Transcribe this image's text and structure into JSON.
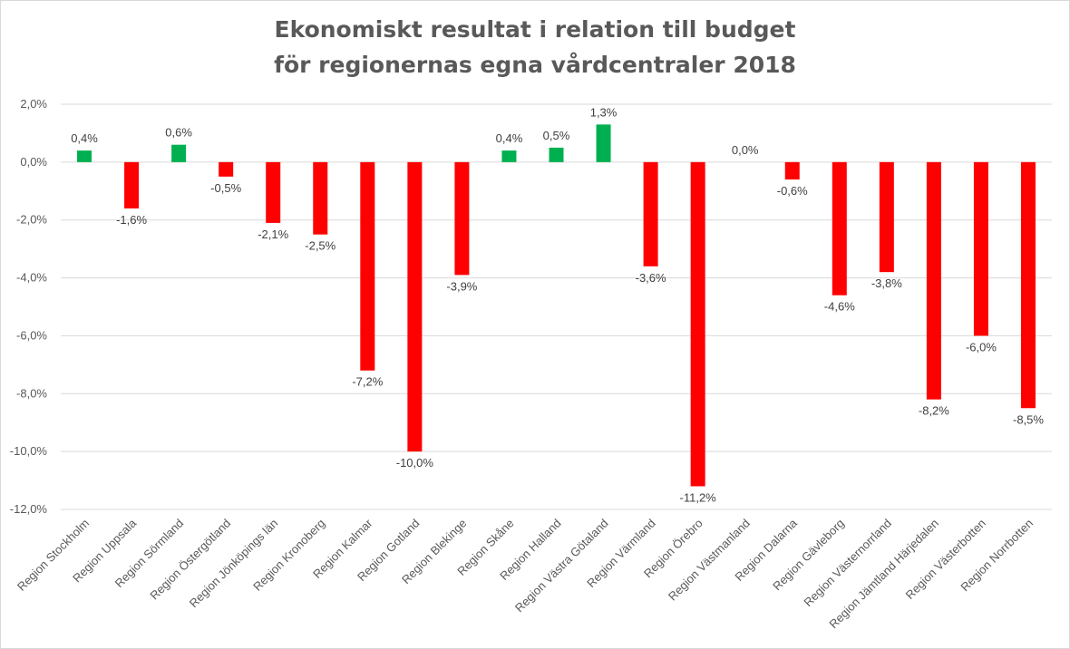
{
  "chart_data": {
    "type": "bar",
    "title": [
      "Ekonomiskt resultat i relation till budget",
      "för regionernas egna vårdcentraler 2018"
    ],
    "xlabel": "",
    "ylabel": "",
    "ylim": [
      -12,
      2
    ],
    "yticks": [
      2,
      0,
      -2,
      -4,
      -6,
      -8,
      -10,
      -12
    ],
    "ytick_labels": [
      "2,0%",
      "0,0%",
      "-2,0%",
      "-4,0%",
      "-6,0%",
      "-8,0%",
      "-10,0%",
      "-12,0%"
    ],
    "grid": true,
    "legend": "none",
    "colors": {
      "positive": "#00b050",
      "negative": "#ff0000",
      "grid": "#d9d9d9"
    },
    "categories": [
      "Region Stockholm",
      "Region Uppsala",
      "Region Sörmland",
      "Region Östergötland",
      "Region Jönköpings län",
      "Region Kronoberg",
      "Region Kalmar",
      "Region Gotland",
      "Region Blekinge",
      "Region Skåne",
      "Region Halland",
      "Region Västra Götaland",
      "Region Värmland",
      "Region Örebro",
      "Region Västmanland",
      "Region Dalarna",
      "Region Gävleborg",
      "Region Västernorrland",
      "Region Jämtland Härjedalen",
      "Region Västerbotten",
      "Region Norrbotten"
    ],
    "values": [
      0.4,
      -1.6,
      0.6,
      -0.5,
      -2.1,
      -2.5,
      -7.2,
      -10.0,
      -3.9,
      0.4,
      0.5,
      1.3,
      -3.6,
      -11.2,
      0.0,
      -0.6,
      -4.6,
      -3.8,
      -8.2,
      -6.0,
      -8.5
    ],
    "data_labels": [
      "0,4%",
      "-1,6%",
      "0,6%",
      "-0,5%",
      "-2,1%",
      "-2,5%",
      "-7,2%",
      "-10,0%",
      "-3,9%",
      "0,4%",
      "0,5%",
      "1,3%",
      "-3,6%",
      "-11,2%",
      "0,0%",
      "-0,6%",
      "-4,6%",
      "-3,8%",
      "-8,2%",
      "-6,0%",
      "-8,5%"
    ]
  }
}
